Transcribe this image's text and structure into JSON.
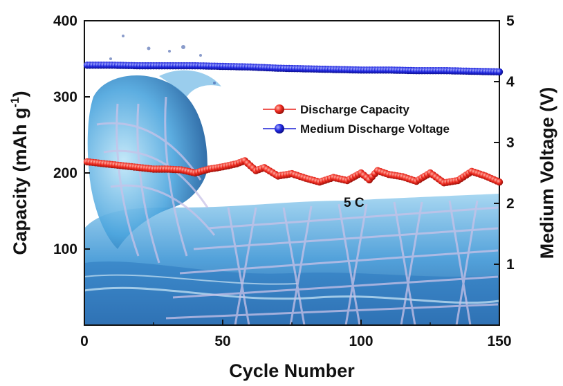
{
  "chart_data": {
    "type": "line",
    "title": "",
    "xlabel": "Cycle Number",
    "ylabel_left": "Capacity (mAh g-1)",
    "ylabel_left_base": "Capacity (mAh g",
    "ylabel_left_sup": "-1",
    "ylabel_left_close": ")",
    "ylabel_right": "Medium Voltage (V)",
    "xlim": [
      0,
      150
    ],
    "ylim_left": [
      0,
      400
    ],
    "ylim_right": [
      0,
      5
    ],
    "x_ticks": [
      0,
      50,
      100,
      150
    ],
    "y_left_ticks": [
      100,
      200,
      300,
      400
    ],
    "y_right_ticks": [
      1,
      2,
      3,
      4,
      5
    ],
    "annotation": "5 C",
    "legend_position": "upper-right",
    "series": [
      {
        "name": "Discharge Capacity",
        "axis": "left",
        "color": "#e8201a",
        "x": [
          0,
          5,
          10,
          15,
          20,
          25,
          30,
          35,
          40,
          45,
          50,
          55,
          58,
          62,
          65,
          70,
          75,
          80,
          85,
          90,
          95,
          100,
          103,
          106,
          110,
          115,
          120,
          125,
          130,
          135,
          140,
          145,
          150
        ],
        "y": [
          215,
          213,
          211,
          209,
          207,
          205,
          205,
          204,
          200,
          205,
          208,
          212,
          216,
          203,
          207,
          196,
          199,
          193,
          188,
          194,
          190,
          200,
          191,
          203,
          198,
          195,
          189,
          200,
          187,
          190,
          202,
          196,
          188
        ]
      },
      {
        "name": "Medium Discharge Voltage",
        "axis": "right",
        "color": "#1a1fd6",
        "x": [
          0,
          10,
          20,
          30,
          40,
          50,
          60,
          70,
          80,
          90,
          100,
          110,
          120,
          130,
          140,
          150
        ],
        "y": [
          4.27,
          4.27,
          4.26,
          4.26,
          4.26,
          4.25,
          4.24,
          4.22,
          4.21,
          4.2,
          4.19,
          4.19,
          4.18,
          4.18,
          4.17,
          4.16
        ]
      }
    ]
  },
  "colors": {
    "discharge_capacity": "#e8201a",
    "medium_voltage": "#1a1fd6",
    "background_water": "#2a7fc4"
  }
}
